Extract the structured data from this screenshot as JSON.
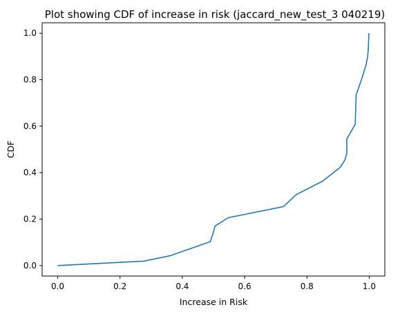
{
  "chart_data": {
    "type": "line",
    "title": "Plot showing CDF of increase in risk (jaccard_new_test_3 040219)",
    "xlabel": "Increase in Risk",
    "ylabel": "CDF",
    "xlim": [
      -0.05,
      1.05
    ],
    "ylim": [
      -0.045,
      1.045
    ],
    "xticks": [
      0.0,
      0.2,
      0.4,
      0.6,
      0.8,
      1.0
    ],
    "xtick_labels": [
      "0.0",
      "0.2",
      "0.4",
      "0.6",
      "0.8",
      "1.0"
    ],
    "yticks": [
      0.0,
      0.2,
      0.4,
      0.6,
      0.8,
      1.0
    ],
    "ytick_labels": [
      "0.0",
      "0.2",
      "0.4",
      "0.6",
      "0.8",
      "1.0"
    ],
    "grid": false,
    "series": [
      {
        "color": "#1f77b4",
        "x": [
          0.0,
          0.275,
          0.36,
          0.415,
          0.49,
          0.495,
          0.5,
          0.505,
          0.547,
          0.725,
          0.765,
          0.85,
          0.907,
          0.922,
          0.928,
          0.928,
          0.955,
          0.958,
          0.975,
          0.99,
          0.995,
          0.997,
          0.999
        ],
        "y": [
          0.0,
          0.019,
          0.042,
          0.068,
          0.103,
          0.125,
          0.145,
          0.17,
          0.206,
          0.254,
          0.305,
          0.363,
          0.423,
          0.455,
          0.484,
          0.545,
          0.608,
          0.735,
          0.8,
          0.865,
          0.9,
          0.935,
          1.0
        ]
      }
    ]
  }
}
